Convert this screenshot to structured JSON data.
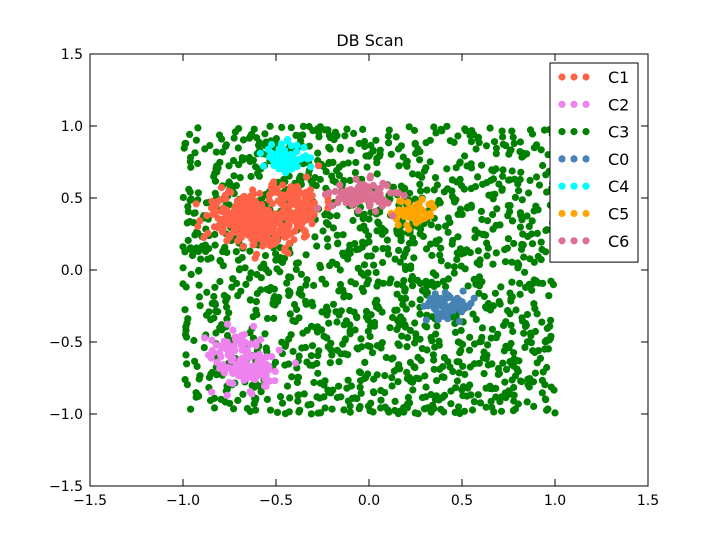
{
  "chart_data": {
    "type": "scatter",
    "title": "DB Scan",
    "xlabel": "",
    "ylabel": "",
    "xlim": [
      -1.5,
      1.5
    ],
    "ylim": [
      -1.5,
      1.5
    ],
    "x_ticks": [
      "−1.5",
      "−1.0",
      "−0.5",
      "0.0",
      "0.5",
      "1.0",
      "1.5"
    ],
    "y_ticks": [
      "−1.5",
      "−1.0",
      "−0.5",
      "0.0",
      "0.5",
      "1.0",
      "1.5"
    ],
    "grid": false,
    "legend_position": "top-right",
    "noise": {
      "xrange": [
        -1.0,
        1.0
      ],
      "yrange": [
        -1.0,
        1.0
      ],
      "count": 1500
    },
    "series": [
      {
        "name": "C1",
        "color": "#ff6347",
        "count": 380,
        "centers": [
          [
            -0.7,
            0.38
          ],
          [
            -0.55,
            0.28
          ],
          [
            -0.42,
            0.45
          ]
        ],
        "spread": [
          0.09,
          0.08
        ]
      },
      {
        "name": "C2",
        "color": "#ee82ee",
        "count": 140,
        "centers": [
          [
            -0.72,
            -0.55
          ],
          [
            -0.62,
            -0.68
          ]
        ],
        "spread": [
          0.07,
          0.08
        ]
      },
      {
        "name": "C3",
        "color": "#008000",
        "count": 0,
        "centers": [],
        "spread": [
          0,
          0
        ]
      },
      {
        "name": "C0",
        "color": "#4682b4",
        "count": 60,
        "centers": [
          [
            0.43,
            -0.25
          ]
        ],
        "spread": [
          0.07,
          0.04
        ]
      },
      {
        "name": "C4",
        "color": "#00ffff",
        "count": 70,
        "centers": [
          [
            -0.45,
            0.78
          ]
        ],
        "spread": [
          0.06,
          0.05
        ]
      },
      {
        "name": "C5",
        "color": "#ffa500",
        "count": 60,
        "centers": [
          [
            0.24,
            0.4
          ]
        ],
        "spread": [
          0.06,
          0.05
        ]
      },
      {
        "name": "C6",
        "color": "#db7093",
        "count": 90,
        "centers": [
          [
            -0.04,
            0.52
          ]
        ],
        "spread": [
          0.08,
          0.05
        ]
      }
    ]
  }
}
